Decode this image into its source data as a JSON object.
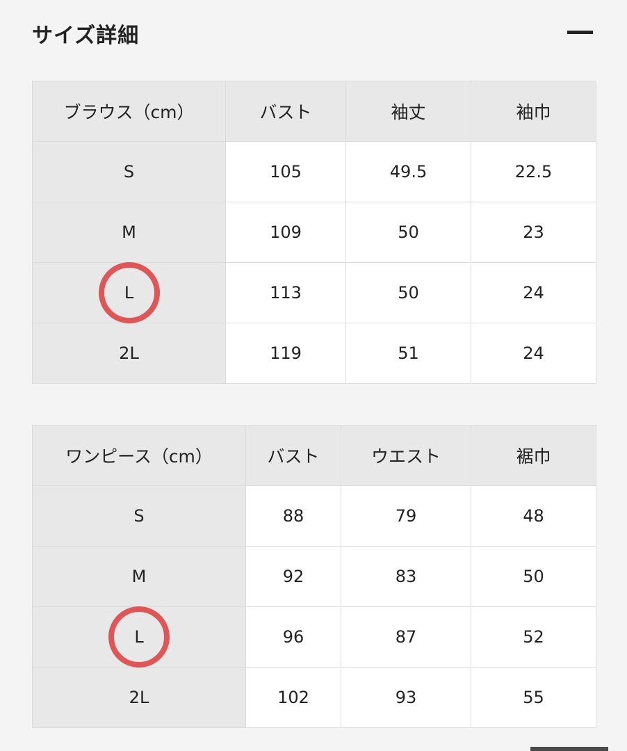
{
  "title": "サイズ詳細",
  "collapse_icon": "minus-icon",
  "highlight_color": "#e05555",
  "tables": [
    {
      "headers": [
        "ブラウス（cm）",
        "バスト",
        "袖丈",
        "袖巾"
      ],
      "rows": [
        [
          "S",
          "105",
          "49.5",
          "22.5"
        ],
        [
          "M",
          "109",
          "50",
          "23"
        ],
        [
          "L",
          "113",
          "50",
          "24"
        ],
        [
          "2L",
          "119",
          "51",
          "24"
        ]
      ],
      "highlighted_size": "L"
    },
    {
      "headers": [
        "ワンピース（cm）",
        "バスト",
        "ウエスト",
        "裾巾"
      ],
      "rows": [
        [
          "S",
          "88",
          "79",
          "48"
        ],
        [
          "M",
          "92",
          "83",
          "50"
        ],
        [
          "L",
          "96",
          "87",
          "52"
        ],
        [
          "2L",
          "102",
          "93",
          "55"
        ]
      ],
      "highlighted_size": "L"
    }
  ]
}
